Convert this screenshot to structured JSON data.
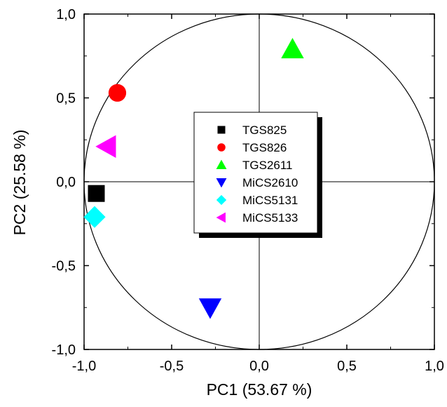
{
  "chart_data": {
    "type": "scatter",
    "xlabel": "PC1 (53.67 %)",
    "ylabel": "PC2 (25.58 %)",
    "xlim": [
      -1.0,
      1.0
    ],
    "ylim": [
      -1.0,
      1.0
    ],
    "xticks": [
      -1.0,
      -0.5,
      0.0,
      0.5,
      1.0
    ],
    "yticks": [
      -1.0,
      -0.5,
      0.0,
      0.5,
      1.0
    ],
    "xtick_labels": [
      "-1,0",
      "-0,5",
      "0,0",
      "0,5",
      "1,0"
    ],
    "ytick_labels": [
      "-1,0",
      "-0,5",
      "0,0",
      "0,5",
      "1,0"
    ],
    "grid": true,
    "unit_circle": true,
    "legend_position": "center",
    "series": [
      {
        "name": "TGS825",
        "marker": "square",
        "color": "#000000",
        "x": -0.93,
        "y": -0.07
      },
      {
        "name": "TGS826",
        "marker": "circle",
        "color": "#ff0000",
        "x": -0.81,
        "y": 0.53
      },
      {
        "name": "TGS2611",
        "marker": "triangle-up",
        "color": "#00ff00",
        "x": 0.19,
        "y": 0.79
      },
      {
        "name": "MiCS2610",
        "marker": "triangle-down",
        "color": "#0000ff",
        "x": -0.28,
        "y": -0.75
      },
      {
        "name": "MiCS5131",
        "marker": "diamond",
        "color": "#00ffff",
        "x": -0.94,
        "y": -0.21
      },
      {
        "name": "MiCS5133",
        "marker": "triangle-left",
        "color": "#ff00ff",
        "x": -0.87,
        "y": 0.21
      }
    ]
  }
}
